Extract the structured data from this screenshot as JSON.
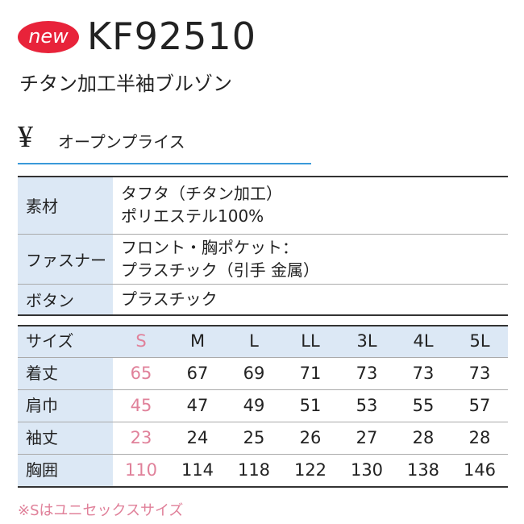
{
  "header": {
    "badge": "new",
    "code": "KF92510",
    "name": "チタン加工半袖ブルゾン"
  },
  "price": {
    "symbol": "¥",
    "text": "オープンプライス"
  },
  "spec_table": {
    "rows": [
      {
        "label": "素材",
        "lines": [
          "タフタ（チタン加工）",
          "ポリエステル100%"
        ]
      },
      {
        "label": "ファスナー",
        "lines": [
          "フロント・胸ポケット：",
          "プラスチック（引手 金属）"
        ]
      },
      {
        "label": "ボタン",
        "lines": [
          "プラスチック"
        ]
      }
    ]
  },
  "size_table": {
    "header": [
      "サイズ",
      "S",
      "M",
      "L",
      "LL",
      "3L",
      "4L",
      "5L"
    ],
    "rows": [
      [
        "着丈",
        "65",
        "67",
        "69",
        "71",
        "73",
        "73",
        "73"
      ],
      [
        "肩巾",
        "45",
        "47",
        "49",
        "51",
        "53",
        "55",
        "57"
      ],
      [
        "袖丈",
        "23",
        "24",
        "25",
        "26",
        "27",
        "28",
        "28"
      ],
      [
        "胸囲",
        "110",
        "114",
        "118",
        "122",
        "130",
        "138",
        "146"
      ]
    ]
  },
  "note": "※Sはユニセックスサイズ"
}
